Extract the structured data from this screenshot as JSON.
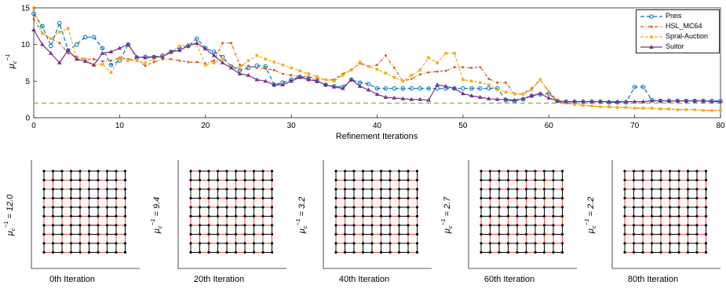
{
  "chart_data": [
    {
      "type": "line",
      "xlabel": "Refinement Iterations",
      "ylabel": "μc−1",
      "xlim": [
        0,
        80
      ],
      "ylim": [
        0,
        15
      ],
      "xticks": [
        "0",
        "10",
        "20",
        "30",
        "40",
        "50",
        "60",
        "70",
        "80"
      ],
      "yticks": [
        "0",
        "5",
        "10",
        "15"
      ],
      "legend_position": "top-right",
      "x": [
        0,
        1,
        2,
        3,
        4,
        5,
        6,
        7,
        8,
        9,
        10,
        11,
        12,
        13,
        14,
        15,
        16,
        17,
        18,
        19,
        20,
        21,
        22,
        23,
        24,
        25,
        26,
        27,
        28,
        29,
        30,
        31,
        32,
        33,
        34,
        35,
        36,
        37,
        38,
        39,
        40,
        41,
        42,
        43,
        44,
        45,
        46,
        47,
        48,
        49,
        50,
        51,
        52,
        53,
        54,
        55,
        56,
        57,
        58,
        59,
        60,
        61,
        62,
        63,
        64,
        65,
        66,
        67,
        68,
        69,
        70,
        71,
        72,
        73,
        74,
        75,
        76,
        77,
        78,
        79,
        80
      ],
      "reference_line": {
        "y": 2,
        "color": "#77ac30",
        "style": "dashed"
      },
      "series": [
        {
          "name": "Preis",
          "color": "#0072bd",
          "marker": "circle",
          "values": [
            14.2,
            12.5,
            9.8,
            12.9,
            9.2,
            10.0,
            11.0,
            11.0,
            9.5,
            7.2,
            7.8,
            10.0,
            8.2,
            8.3,
            8.3,
            8.5,
            9.0,
            9.5,
            9.8,
            10.8,
            9.5,
            9.0,
            8.3,
            7.0,
            6.5,
            6.8,
            7.1,
            7.0,
            4.5,
            4.8,
            5.2,
            5.6,
            5.4,
            5.0,
            4.5,
            4.3,
            4.2,
            5.2,
            4.8,
            4.6,
            4.0,
            4.0,
            4.0,
            4.0,
            4.0,
            4.0,
            4.0,
            4.0,
            4.0,
            4.0,
            4.0,
            4.0,
            4.0,
            4.0,
            4.0,
            2.4,
            2.3,
            2.5,
            3.0,
            3.2,
            3.3,
            2.3,
            2.2,
            2.2,
            2.2,
            2.2,
            2.2,
            2.1,
            2.1,
            2.1,
            4.2,
            4.2,
            2.4,
            2.3,
            2.3,
            2.3,
            2.3,
            2.3,
            2.3,
            2.3,
            2.3
          ]
        },
        {
          "name": "HSL_MC64",
          "color": "#d95319",
          "marker": "dot",
          "values": [
            13.5,
            11.5,
            10.8,
            10.2,
            8.8,
            8.3,
            8.0,
            8.0,
            7.7,
            7.8,
            8.2,
            8.0,
            7.9,
            7.1,
            7.6,
            8.0,
            8.0,
            7.8,
            7.6,
            7.6,
            7.4,
            7.8,
            10.2,
            10.2,
            7.2,
            7.1,
            6.8,
            6.7,
            6.5,
            6.0,
            5.8,
            5.6,
            5.6,
            5.3,
            5.2,
            5.2,
            6.0,
            6.6,
            7.4,
            7.0,
            7.2,
            8.5,
            6.8,
            5.0,
            5.3,
            5.9,
            6.2,
            6.3,
            6.4,
            6.9,
            6.9,
            6.8,
            6.9,
            5.3,
            4.8,
            4.8,
            3.2,
            3.3,
            4.0,
            5.2,
            3.5,
            2.2,
            2.0,
            1.8,
            1.7,
            1.6,
            1.5,
            1.5,
            1.4,
            1.4,
            1.3,
            1.3,
            1.3,
            1.2,
            1.2,
            1.1,
            1.1,
            1.1,
            1.0,
            1.0,
            1.0
          ]
        },
        {
          "name": "Spral-Auction",
          "color": "#edb120",
          "marker": "square",
          "values": [
            15.0,
            11.5,
            10.8,
            11.7,
            12.2,
            8.0,
            8.0,
            7.2,
            7.3,
            6.2,
            8.0,
            7.8,
            7.8,
            7.5,
            8.0,
            8.5,
            8.8,
            9.8,
            10.0,
            10.0,
            7.2,
            7.5,
            8.0,
            7.0,
            6.8,
            7.8,
            8.5,
            8.0,
            7.6,
            7.2,
            6.8,
            6.4,
            6.0,
            5.6,
            5.2,
            5.0,
            5.8,
            6.5,
            7.6,
            7.0,
            6.6,
            6.1,
            5.5,
            5.0,
            5.8,
            6.5,
            8.2,
            7.5,
            8.8,
            8.8,
            5.2,
            5.0,
            4.8,
            4.5,
            3.8,
            3.5,
            3.3,
            3.2,
            3.8,
            5.2,
            3.6,
            2.4,
            2.0,
            1.8,
            1.7,
            1.6,
            1.5,
            1.5,
            1.4,
            1.4,
            1.3,
            1.3,
            1.3,
            1.2,
            1.2,
            1.1,
            1.1,
            1.1,
            1.0,
            1.0,
            1.0
          ]
        },
        {
          "name": "Suitor",
          "color": "#7e2f8e",
          "marker": "triangle",
          "values": [
            12.0,
            10.0,
            8.8,
            7.5,
            9.2,
            8.0,
            7.7,
            7.2,
            8.8,
            9.0,
            9.5,
            10.0,
            8.3,
            8.2,
            8.3,
            8.3,
            9.0,
            9.2,
            9.8,
            10.2,
            9.4,
            8.5,
            7.5,
            6.8,
            6.0,
            5.8,
            5.2,
            5.0,
            4.5,
            4.5,
            5.0,
            5.5,
            5.2,
            5.0,
            4.5,
            4.2,
            4.0,
            5.2,
            4.3,
            3.8,
            3.2,
            2.8,
            2.7,
            2.6,
            2.5,
            2.5,
            2.4,
            4.5,
            4.3,
            4.0,
            3.3,
            3.0,
            2.8,
            2.6,
            2.5,
            2.5,
            2.4,
            2.6,
            3.0,
            3.3,
            2.7,
            2.3,
            2.2,
            2.2,
            2.2,
            2.2,
            2.2,
            2.2,
            2.2,
            2.2,
            2.2,
            2.2,
            2.3,
            2.3,
            2.3,
            2.3,
            2.3,
            2.3,
            2.3,
            2.2,
            2.2
          ]
        }
      ]
    },
    {
      "type": "grid-graph",
      "panels": [
        {
          "caption": "0th Iteration",
          "ylabel": "μc−1 = 12.0"
        },
        {
          "caption": "20th Iteration",
          "ylabel": "μc−1 = 9.4"
        },
        {
          "caption": "40th Iteration",
          "ylabel": "μc−1 = 3.2"
        },
        {
          "caption": "60th Iteration",
          "ylabel": "μc−1 = 2.7"
        },
        {
          "caption": "80th Iteration",
          "ylabel": "μc−1 = 2.2"
        }
      ],
      "grid_size": 10,
      "edge_colors": {
        "heavy": "#e8423c",
        "light": "#000000"
      },
      "node_color": "#000000"
    }
  ]
}
